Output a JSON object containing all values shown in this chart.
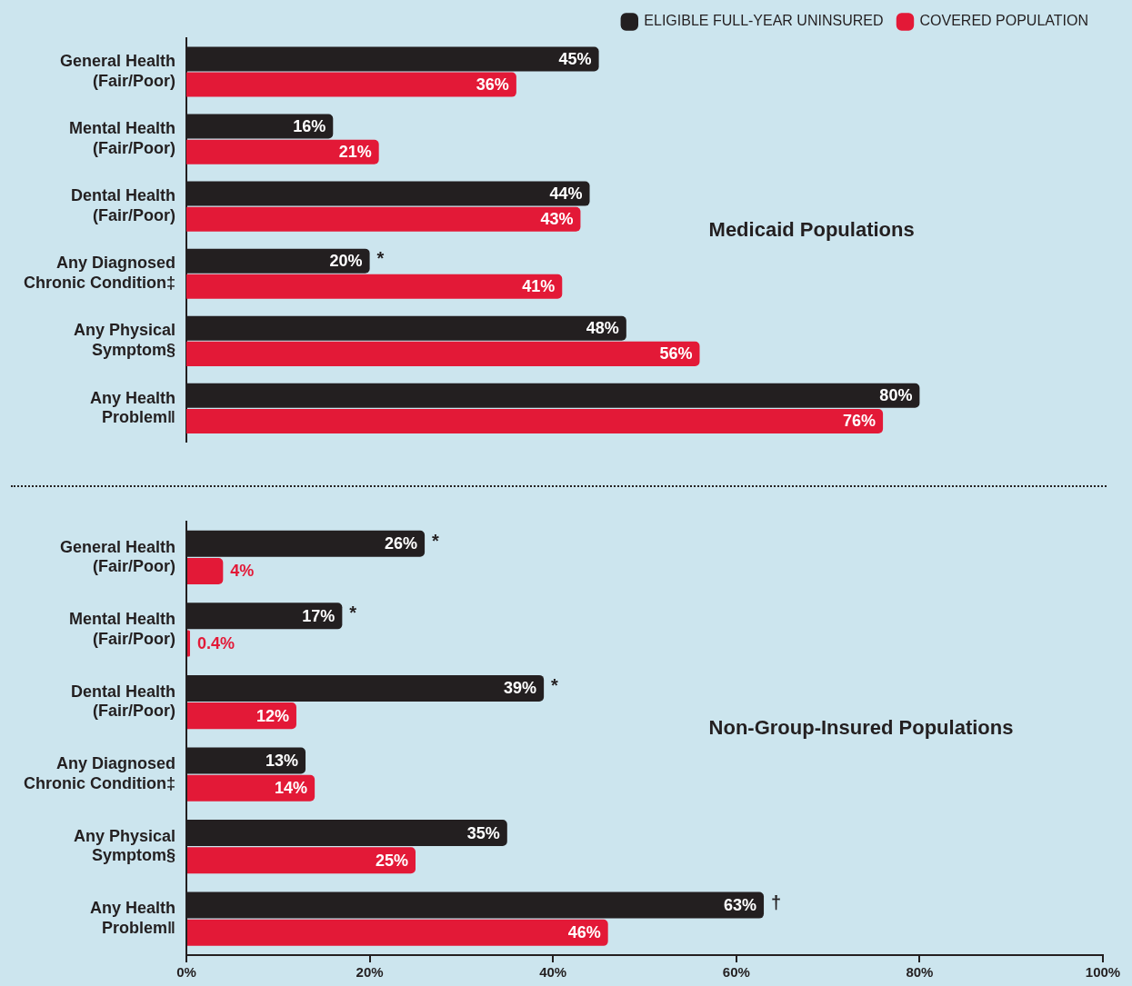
{
  "chart_data": [
    {
      "type": "bar",
      "orientation": "horizontal",
      "categories": [
        "General Health (Fair/Poor)",
        "Mental Health (Fair/Poor)",
        "Dental Health (Fair/Poor)",
        "Any Diagnosed Chronic Condition‡",
        "Any Physical Symptom§",
        "Any Health Problem‖"
      ],
      "series": [
        {
          "name": "ELIGIBLE FULL-YEAR UNINSURED",
          "color": "#231f20",
          "values": [
            45,
            16,
            44,
            20,
            48,
            80
          ],
          "value_labels": [
            "45%",
            "16%",
            "44%",
            "20%",
            "48%",
            "80%"
          ]
        },
        {
          "name": "COVERED POPULATION",
          "color": "#e31937",
          "values": [
            36,
            21,
            43,
            41,
            56,
            76
          ],
          "value_labels": [
            "36%",
            "21%",
            "43%",
            "41%",
            "56%",
            "76%"
          ]
        }
      ],
      "xlim": [
        0,
        100
      ],
      "tick_labels": "y",
      "legend": "top right",
      "grid": false,
      "annotations": [
        "Medicaid Populations",
        {
          "text": "*",
          "x": 20,
          "y": "Any Diagnosed Chronic Condition‡"
        }
      ]
    },
    {
      "type": "bar",
      "orientation": "horizontal",
      "categories": [
        "General Health (Fair/Poor)",
        "Mental Health (Fair/Poor)",
        "Dental Health (Fair/Poor)",
        "Any Diagnosed Chronic Condition‡",
        "Any Physical Symptom§",
        "Any Health Problem‖"
      ],
      "series": [
        {
          "color": "#231f20",
          "values": [
            26,
            17,
            39,
            13,
            35,
            63
          ],
          "value_labels": [
            "26%",
            "17%",
            "39%",
            "13%",
            "35%",
            "63%"
          ]
        },
        {
          "color": "#e31937",
          "values": [
            4,
            0.4,
            12,
            14,
            25,
            46
          ],
          "value_labels": [
            "4%",
            "0.4%",
            "12%",
            "14%",
            "25%",
            "46%"
          ]
        }
      ],
      "xlim": [
        0,
        100
      ],
      "xticks": [
        {
          "value": 0,
          "label": "0%"
        },
        {
          "value": 20,
          "label": "20%"
        },
        {
          "value": 40,
          "label": "40%"
        },
        {
          "value": 60,
          "label": "60%"
        },
        {
          "value": 80,
          "label": "80%"
        },
        {
          "value": 100,
          "label": "100%"
        }
      ],
      "grid": false,
      "annotations": [
        "Non-Group-Insured Populations",
        {
          "text": "*",
          "x": 26,
          "y": "General Health (Fair/Poor)"
        },
        {
          "text": "*",
          "x": 17,
          "y": "Mental Health (Fair/Poor)"
        },
        {
          "text": "*",
          "x": 39,
          "y": "Dental Health (Fair/Poor)"
        },
        {
          "text": "†",
          "x": 63,
          "y": "Any Health Problem‖"
        }
      ]
    }
  ]
}
